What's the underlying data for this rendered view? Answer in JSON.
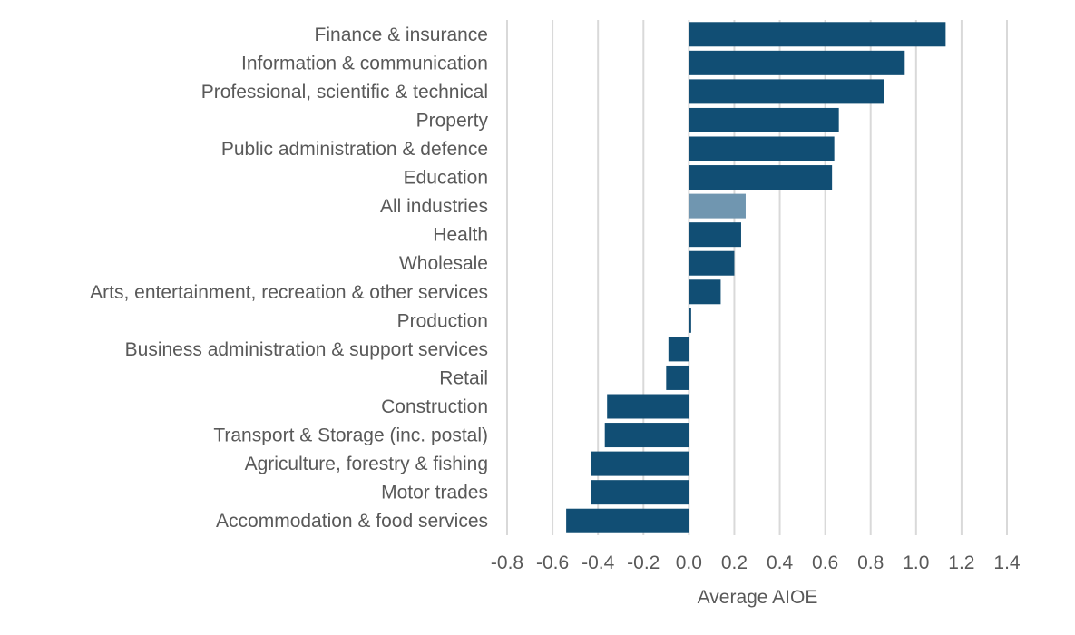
{
  "chart_data": {
    "type": "bar",
    "orientation": "horizontal",
    "categories": [
      "Finance & insurance",
      "Information & communication",
      "Professional, scientific & technical",
      "Property",
      "Public administration & defence",
      "Education",
      "All industries",
      "Health",
      "Wholesale",
      "Arts, entertainment, recreation & other services",
      "Production",
      "Business administration & support services",
      "Retail",
      "Construction",
      "Transport & Storage (inc. postal)",
      "Agriculture, forestry & fishing",
      "Motor trades",
      "Accommodation & food services"
    ],
    "values": [
      1.13,
      0.95,
      0.86,
      0.66,
      0.64,
      0.63,
      0.25,
      0.23,
      0.2,
      0.14,
      0.01,
      -0.09,
      -0.1,
      -0.36,
      -0.37,
      -0.43,
      -0.43,
      -0.54
    ],
    "highlight_category": "All industries",
    "xlabel": "Average AIOE",
    "ylabel": "",
    "xlim": [
      -0.8,
      1.4
    ],
    "xticks": [
      "-0.8",
      "-0.6",
      "-0.4",
      "-0.2",
      "0.0",
      "0.2",
      "0.4",
      "0.6",
      "0.8",
      "1.0",
      "1.2",
      "1.4"
    ],
    "grid": "vertical",
    "colors": {
      "bar": "#114e74",
      "highlight": "#7096b0",
      "grid": "#d9d9d9",
      "text": "#595959"
    }
  }
}
